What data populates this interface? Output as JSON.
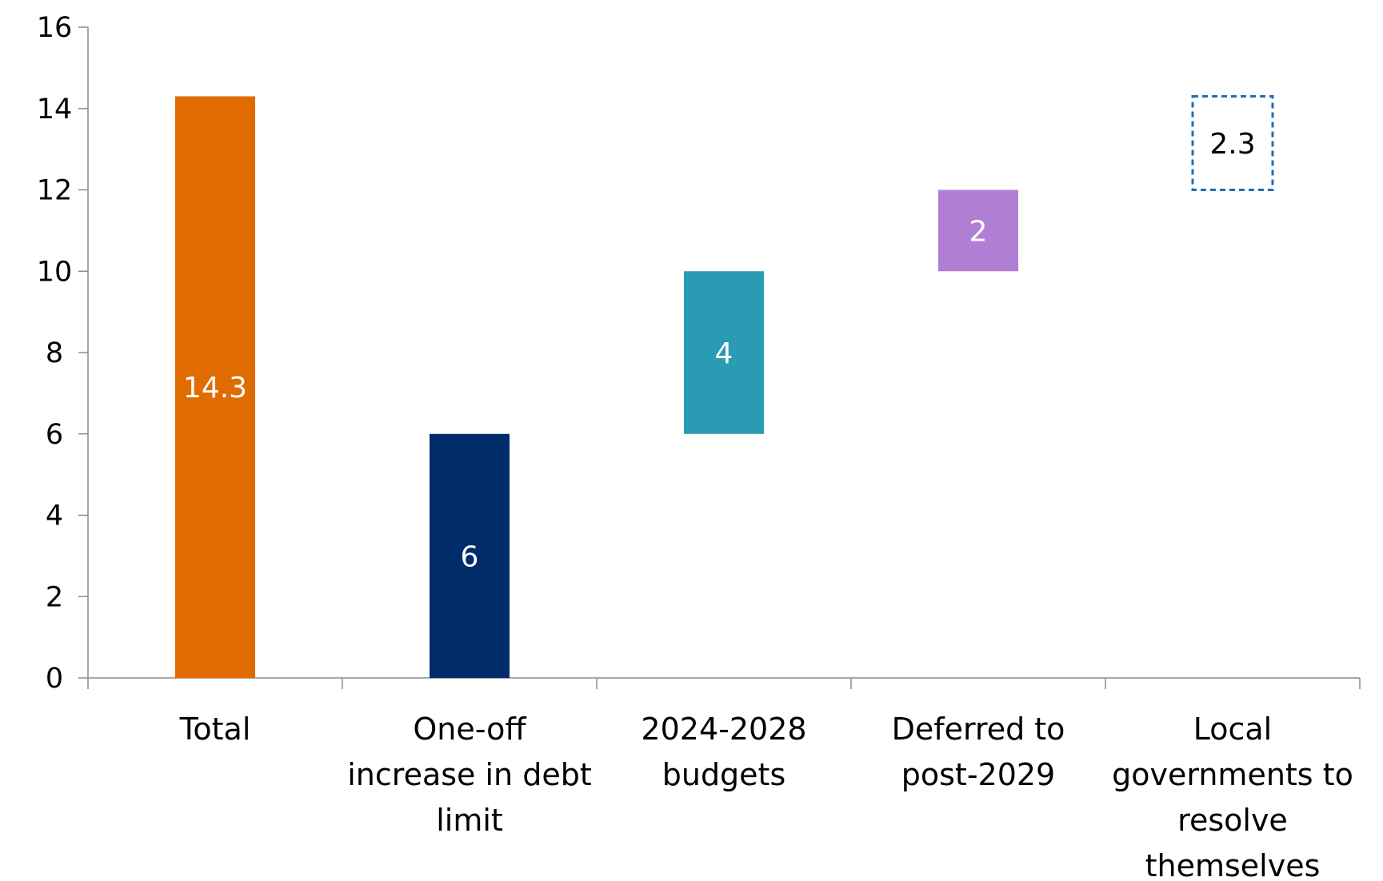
{
  "chart_data": {
    "type": "bar",
    "subtype": "waterfall",
    "title": "",
    "xlabel": "",
    "ylabel": "",
    "ylim": [
      0,
      16
    ],
    "y_ticks": [
      "0",
      "2",
      "4",
      "6",
      "8",
      "10",
      "12",
      "14",
      "16"
    ],
    "grid": false,
    "legend": "none",
    "categories": [
      [
        "Total"
      ],
      [
        "One-off",
        "increase in debt",
        "limit"
      ],
      [
        "2024-2028",
        "budgets"
      ],
      [
        "Deferred to",
        "post-2029"
      ],
      [
        "Local",
        "governments to",
        "resolve",
        "themselves"
      ]
    ],
    "bars": [
      {
        "label": "14.3",
        "value": 14.3,
        "base": 0,
        "top": 14.3,
        "color": "#e06c00",
        "label_color": "#ffffff",
        "style": "solid"
      },
      {
        "label": "6",
        "value": 6,
        "base": 0,
        "top": 6,
        "color": "#002d6a",
        "label_color": "#ffffff",
        "style": "solid"
      },
      {
        "label": "4",
        "value": 4,
        "base": 6,
        "top": 10,
        "color": "#2a9bb3",
        "label_color": "#ffffff",
        "style": "solid"
      },
      {
        "label": "2",
        "value": 2,
        "base": 10,
        "top": 12,
        "color": "#b07fd4",
        "label_color": "#ffffff",
        "style": "solid"
      },
      {
        "label": "2.3",
        "value": 2.3,
        "base": 12,
        "top": 14.3,
        "color": "#1f6fb4",
        "label_color": "#000000",
        "style": "dashed"
      }
    ]
  }
}
